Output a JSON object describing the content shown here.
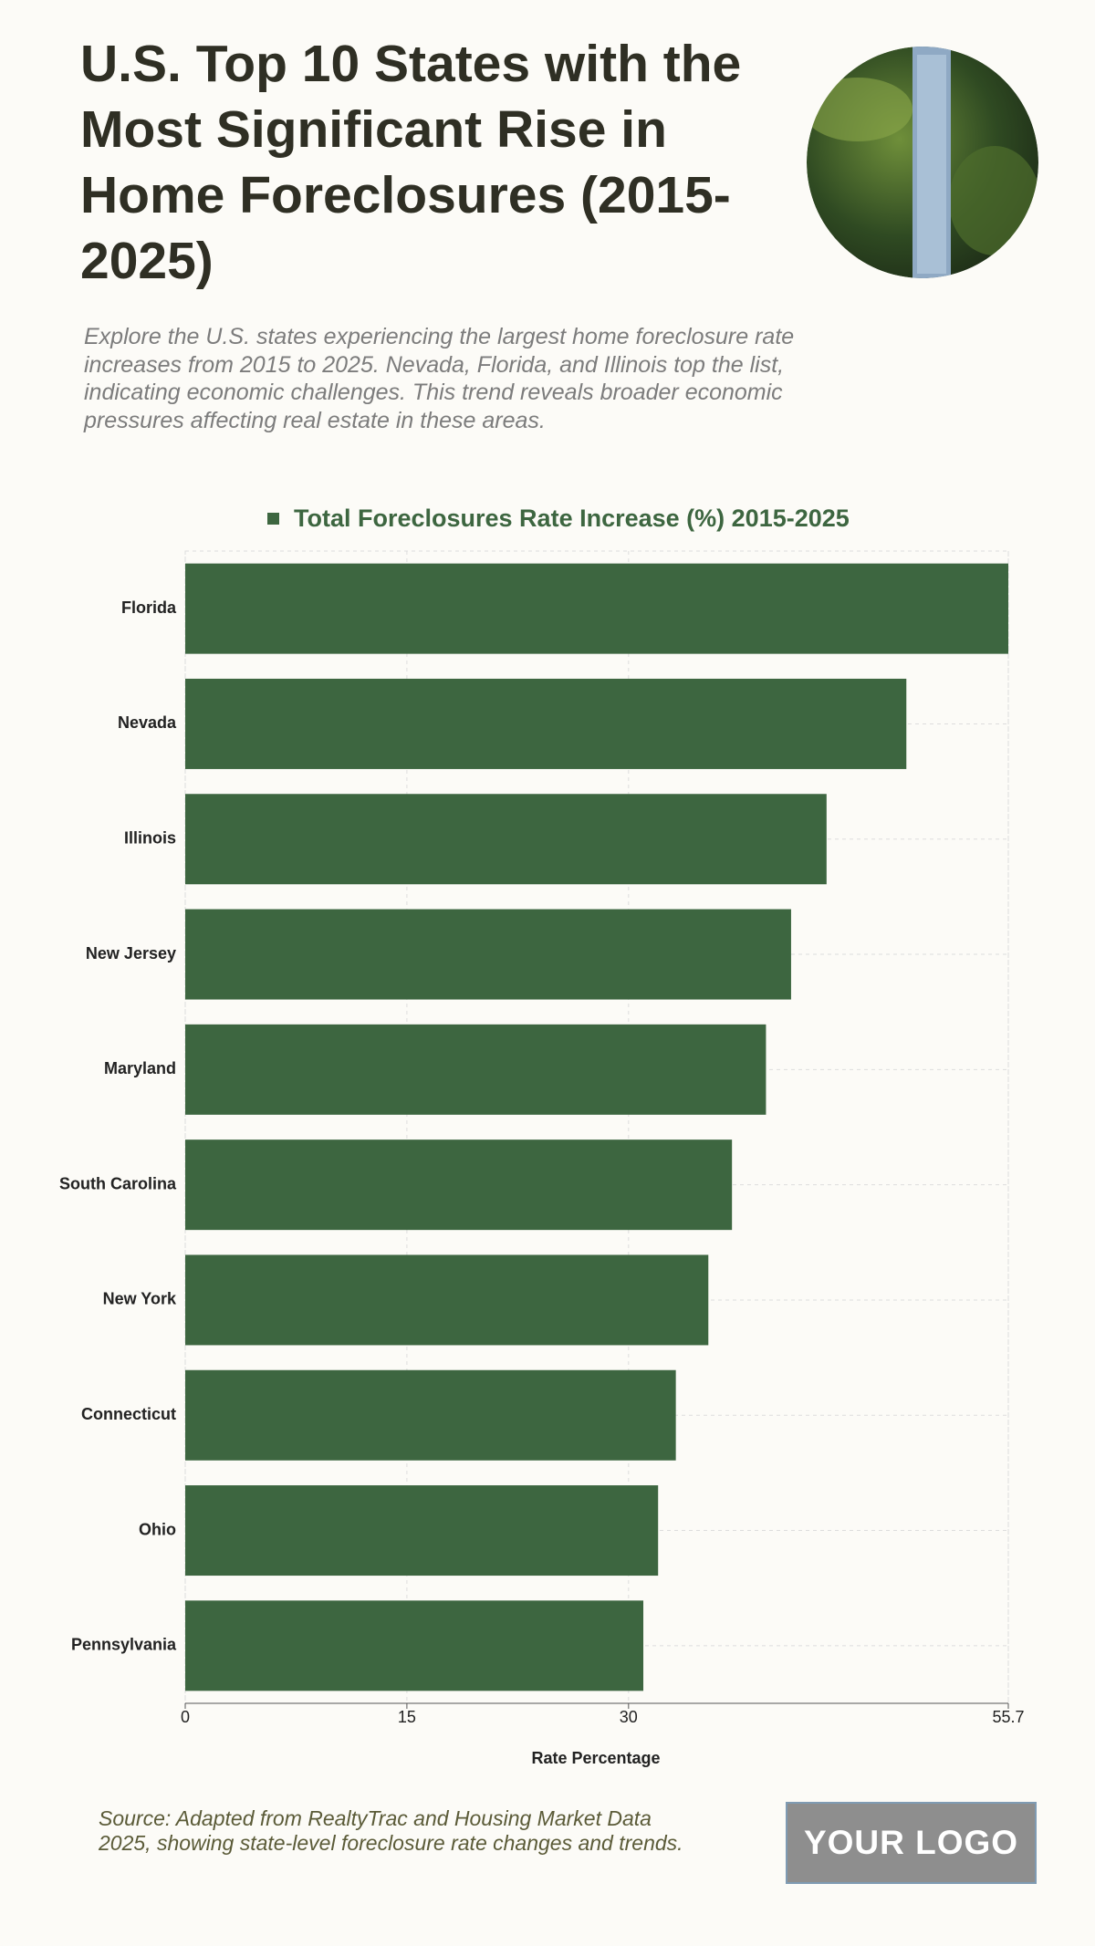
{
  "header": {
    "title": "U.S. Top 10 States with the Most Significant Rise in Home Foreclosures (2015-2025)",
    "subtitle": "Explore the U.S. states experiencing the largest home foreclosure rate increases from 2015 to 2025. Nevada, Florida, and Illinois top the list, indicating economic challenges. This trend reveals broader economic pressures affecting real estate in these areas."
  },
  "chart_data": {
    "type": "hbar",
    "categories": [
      "Florida",
      "Nevada",
      "Illinois",
      "New Jersey",
      "Maryland",
      "South Carolina",
      "New York",
      "Connecticut",
      "Ohio",
      "Pennsylvania"
    ],
    "series": [
      {
        "name": "Total Foreclosures Rate Increase (%) 2015-2025",
        "color": "#3d6640",
        "values": [
          55.7,
          48.8,
          43.4,
          41.0,
          39.3,
          37.0,
          35.4,
          33.2,
          32.0,
          31.0
        ]
      }
    ],
    "xlim": [
      0,
      55.7
    ],
    "xticks": [
      0,
      15,
      30,
      55.7
    ],
    "xlabel": "Rate Percentage",
    "grid": true,
    "legend": "top"
  },
  "footer": {
    "source": "Source: Adapted from RealtyTrac and Housing Market Data 2025, showing state-level foreclosure rate changes and trends.",
    "logo": "YOUR LOGO"
  }
}
